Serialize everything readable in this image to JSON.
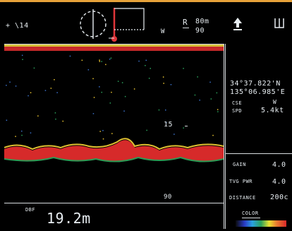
{
  "top_bar": {
    "mode_text": "+ \\14",
    "range_prefix": "R",
    "range_value": "80m",
    "range_sub": "90",
    "west_label": "W",
    "up_arrow_icon": "up-arrow-icon",
    "menu_icon": "menu-bracket-icon"
  },
  "sonar": {
    "depth_marker_mid": "15",
    "depth_marker_bottom": "90",
    "bottom_label": "DBF",
    "depth_value": "19.2m"
  },
  "right_panel": {
    "latitude": "34°37.822'N",
    "longitude": "135°06.985'E",
    "course_label": "CSE",
    "course_value": "W",
    "speed_label": "SPD",
    "speed_value": "5.4kt",
    "gain_label": "GAIN",
    "gain_value": "4.0",
    "tvg_label": "TVG PWR",
    "tvg_value": "4.0",
    "distance_label": "DISTANCE",
    "distance_value": "200c",
    "color_label": "COLOR"
  },
  "colors": {
    "bezel": "#e6a23a",
    "echo_strong": "#d8282a",
    "echo_mid": "#e8c230",
    "echo_weak": "#2aa05a",
    "echo_faint": "#3a70c8"
  }
}
